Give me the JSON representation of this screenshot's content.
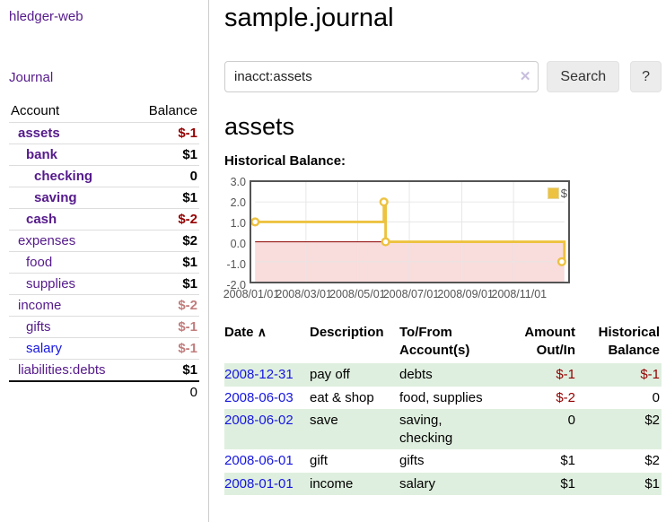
{
  "app": {
    "title": "hledger-web"
  },
  "colors": {
    "link_purple": "#551A8B",
    "link_blue": "#1515e0",
    "negative_red": "#940000",
    "negative_muted_red": "#c17d7d",
    "row_shading_green": "#dfefdf",
    "series_gold": "#EDC240",
    "chart_negative_region": "#f9dcdc"
  },
  "sidebar": {
    "journal_label": "Journal",
    "accounts_header": {
      "account": "Account",
      "balance": "Balance"
    },
    "accounts": [
      {
        "name": "assets",
        "depth": 1,
        "bold": true,
        "balance": "$-1",
        "balance_color": "negative"
      },
      {
        "name": "bank",
        "depth": 2,
        "bold": true,
        "balance": "$1",
        "balance_color": "normal"
      },
      {
        "name": "checking",
        "depth": 3,
        "bold": true,
        "balance": "0",
        "balance_color": "normal"
      },
      {
        "name": "saving",
        "depth": 3,
        "bold": true,
        "balance": "$1",
        "balance_color": "normal"
      },
      {
        "name": "cash",
        "depth": 2,
        "bold": true,
        "balance": "$-2",
        "balance_color": "negative"
      },
      {
        "name": "expenses",
        "depth": 1,
        "bold": false,
        "balance": "$2",
        "balance_color": "normal"
      },
      {
        "name": "food",
        "depth": 2,
        "bold": false,
        "balance": "$1",
        "balance_color": "normal"
      },
      {
        "name": "supplies",
        "depth": 2,
        "bold": false,
        "balance": "$1",
        "balance_color": "normal"
      },
      {
        "name": "income",
        "depth": 1,
        "bold": false,
        "balance": "$-2",
        "balance_color": "negative-muted"
      },
      {
        "name": "gifts",
        "depth": 2,
        "bold": false,
        "balance": "$-1",
        "balance_color": "negative-muted"
      },
      {
        "name": "salary",
        "depth": 2,
        "bold": false,
        "link_color": "blue",
        "balance": "$-1",
        "balance_color": "negative-muted"
      },
      {
        "name": "liabilities:debts",
        "depth": 1,
        "bold": false,
        "balance": "$1",
        "balance_color": "normal"
      }
    ],
    "total": "0"
  },
  "main": {
    "title": "sample.journal",
    "search": {
      "value": "inacct:assets",
      "clear_icon": "✕",
      "button_label": "Search",
      "help_label": "?"
    },
    "account_heading": "assets",
    "chart_label": "Historical Balance:"
  },
  "chart_data": {
    "type": "line",
    "step": true,
    "title": "Historical Balance:",
    "legend_label": "$",
    "legend_position": "top-right",
    "series_color": "#EDC240",
    "x": [
      "2008-01-01",
      "2008-06-01",
      "2008-06-03",
      "2008-12-31"
    ],
    "values": [
      1,
      2,
      0,
      -1
    ],
    "xrange": [
      "2008-01-01",
      "2008-12-31"
    ],
    "xticks": [
      {
        "label": "2008/01/01",
        "date": "2008-01-01"
      },
      {
        "label": "2008/03/01",
        "date": "2008-03-01"
      },
      {
        "label": "2008/05/01",
        "date": "2008-05-01"
      },
      {
        "label": "2008/07/01",
        "date": "2008-07-01"
      },
      {
        "label": "2008/09/01",
        "date": "2008-09-01"
      },
      {
        "label": "2008/11/01",
        "date": "2008-11-01"
      }
    ],
    "yticks": [
      3,
      2,
      1,
      0,
      -1,
      -2
    ],
    "ylim": [
      -2,
      3
    ],
    "grid": true,
    "negative_region_color": "#f9dcdc",
    "zero_line_color": "#8b0000"
  },
  "register": {
    "columns": [
      {
        "label": "Date",
        "sort_indicator": "∧"
      },
      {
        "label": "Description"
      },
      {
        "label": "To/From Account(s)"
      },
      {
        "label": "Amount Out/In"
      },
      {
        "label": "Historical Balance"
      }
    ],
    "rows": [
      {
        "date": "2008-12-31",
        "description": "pay off",
        "accounts": "debts",
        "amount": "$-1",
        "amount_negative": true,
        "balance": "$-1",
        "balance_negative": true,
        "shaded": true
      },
      {
        "date": "2008-06-03",
        "description": "eat & shop",
        "accounts": "food, supplies",
        "amount": "$-2",
        "amount_negative": true,
        "balance": "0",
        "balance_negative": false,
        "shaded": false
      },
      {
        "date": "2008-06-02",
        "description": "save",
        "accounts": "saving, checking",
        "amount": "0",
        "amount_negative": false,
        "balance": "$2",
        "balance_negative": false,
        "shaded": true
      },
      {
        "date": "2008-06-01",
        "description": "gift",
        "accounts": "gifts",
        "amount": "$1",
        "amount_negative": false,
        "balance": "$2",
        "balance_negative": false,
        "shaded": false
      },
      {
        "date": "2008-01-01",
        "description": "income",
        "accounts": "salary",
        "amount": "$1",
        "amount_negative": false,
        "balance": "$1",
        "balance_negative": false,
        "shaded": true
      }
    ]
  }
}
